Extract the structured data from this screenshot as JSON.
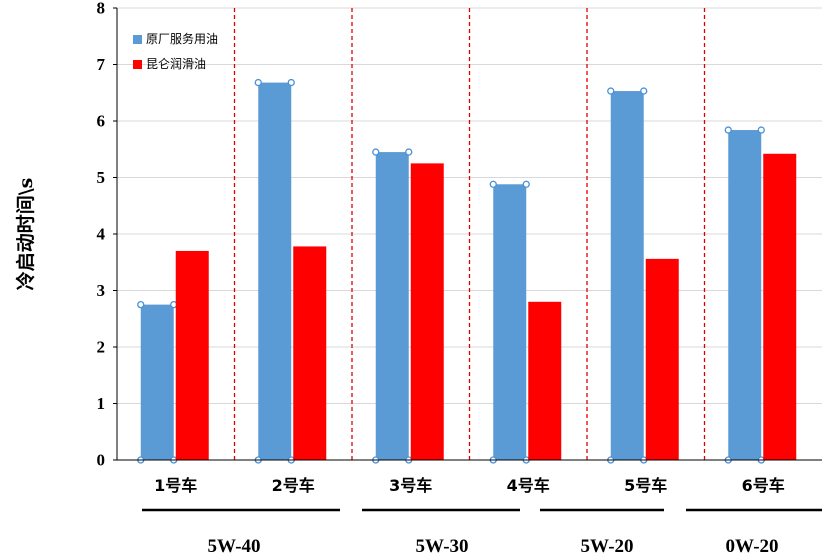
{
  "chart_data": {
    "type": "bar",
    "categories": [
      "1号车",
      "2号车",
      "3号车",
      "4号车",
      "5号车",
      "6号车"
    ],
    "series": [
      {
        "name": "原厂服务用油",
        "color": "#5B9BD5",
        "values": [
          2.75,
          6.68,
          5.45,
          4.88,
          6.53,
          5.84
        ]
      },
      {
        "name": "昆仑润滑油",
        "color": "#FF0000",
        "values": [
          3.7,
          3.78,
          5.25,
          2.8,
          3.56,
          5.42
        ]
      }
    ],
    "groups": [
      "5W-40",
      "5W-30",
      "5W-20",
      "0W-20"
    ],
    "ylabel": "冷启动时间\\s",
    "yticks": [
      "0",
      "1",
      "2",
      "3",
      "4",
      "5",
      "6",
      "7",
      "8"
    ],
    "ylim": [
      0,
      8
    ],
    "grid": true,
    "legend_position": "top-left"
  }
}
